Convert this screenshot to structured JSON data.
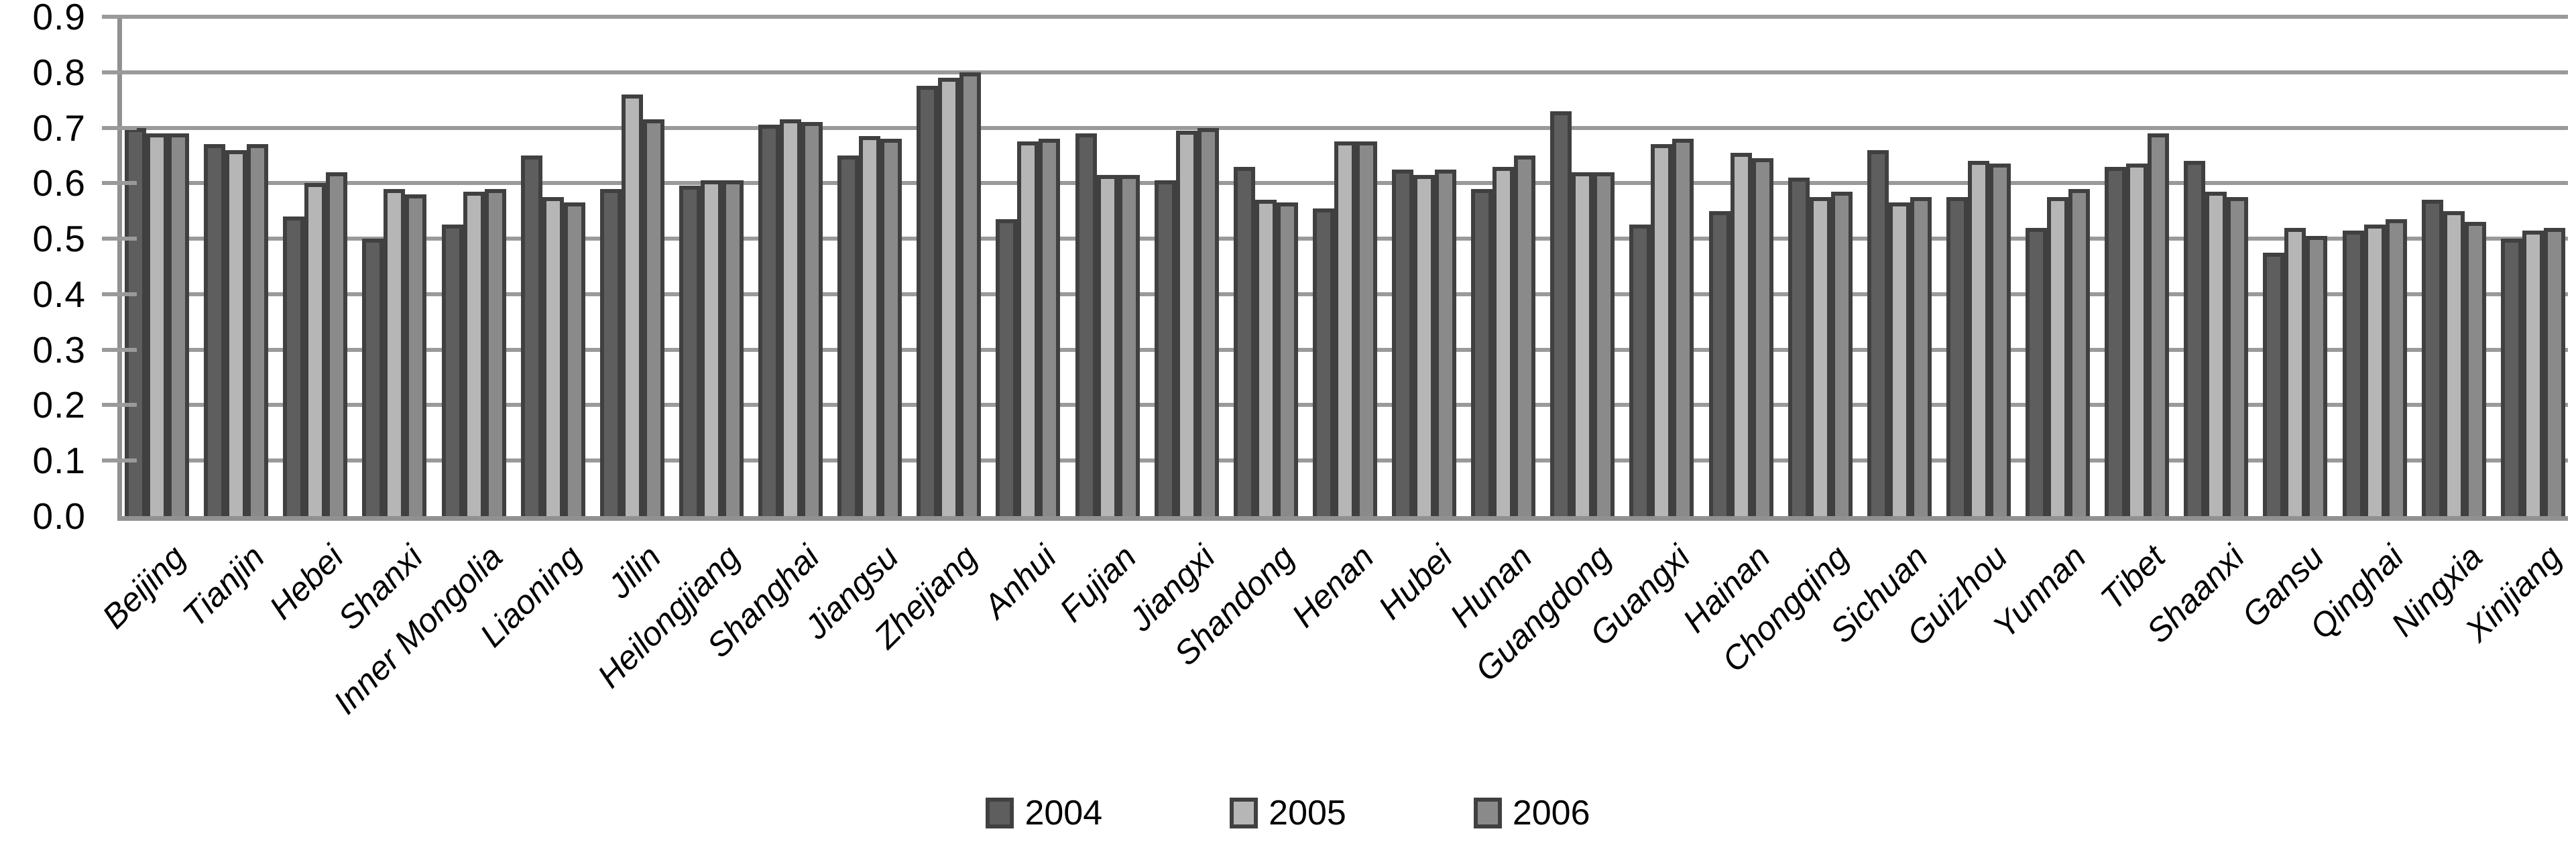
{
  "chart_data": {
    "type": "bar",
    "title": "",
    "xlabel": "",
    "ylabel": "",
    "categories": [
      "Beijing",
      "Tianjin",
      "Hebei",
      "Shanxi",
      "Inner Mongolia",
      "Liaoning",
      "Jilin",
      "Heilongjiang",
      "Shanghai",
      "Jiangsu",
      "Zhejiang",
      "Anhui",
      "Fujian",
      "Jiangxi",
      "Shandong",
      "Henan",
      "Hubei",
      "Hunan",
      "Guangdong",
      "Guangxi",
      "Hainan",
      "Chongqing",
      "Sichuan",
      "Guizhou",
      "Yunnan",
      "Tibet",
      "Shaanxi",
      "Gansu",
      "Qinghai",
      "Ningxia",
      "Xinjiang"
    ],
    "series": [
      {
        "name": "2004",
        "color": "#5e5e5e",
        "values": [
          0.7,
          0.67,
          0.54,
          0.5,
          0.525,
          0.65,
          0.59,
          0.595,
          0.705,
          0.65,
          0.775,
          0.535,
          0.69,
          0.605,
          0.63,
          0.555,
          0.625,
          0.59,
          0.73,
          0.525,
          0.55,
          0.61,
          0.66,
          0.575,
          0.52,
          0.63,
          0.64,
          0.475,
          0.515,
          0.57,
          0.5
        ]
      },
      {
        "name": "2005",
        "color": "#b6b6b6",
        "values": [
          0.69,
          0.66,
          0.6,
          0.59,
          0.585,
          0.575,
          0.76,
          0.605,
          0.715,
          0.685,
          0.79,
          0.675,
          0.615,
          0.695,
          0.57,
          0.675,
          0.615,
          0.63,
          0.62,
          0.67,
          0.655,
          0.575,
          0.565,
          0.64,
          0.575,
          0.635,
          0.585,
          0.52,
          0.525,
          0.55,
          0.515
        ]
      },
      {
        "name": "2006",
        "color": "#8a8a8a",
        "values": [
          0.69,
          0.67,
          0.62,
          0.58,
          0.59,
          0.565,
          0.715,
          0.605,
          0.71,
          0.68,
          0.8,
          0.68,
          0.615,
          0.7,
          0.565,
          0.675,
          0.625,
          0.65,
          0.62,
          0.68,
          0.645,
          0.585,
          0.575,
          0.635,
          0.59,
          0.69,
          0.575,
          0.505,
          0.535,
          0.53,
          0.52
        ]
      }
    ],
    "ylim": [
      0.0,
      0.9
    ],
    "ytick_step": 0.1,
    "ytick_labels": [
      "0.0",
      "0.1",
      "0.2",
      "0.3",
      "0.4",
      "0.5",
      "0.6",
      "0.7",
      "0.8",
      "0.9"
    ],
    "grid": "horizontal-only",
    "legend_position": "bottom-center",
    "legend_entries": [
      "2004",
      "2005",
      "2006"
    ],
    "bar_border_color": "#404040",
    "gridline_color": "#9a9a9a",
    "axis_color": "#919191",
    "text_color": "#000000",
    "background_color": "#ffffff"
  }
}
